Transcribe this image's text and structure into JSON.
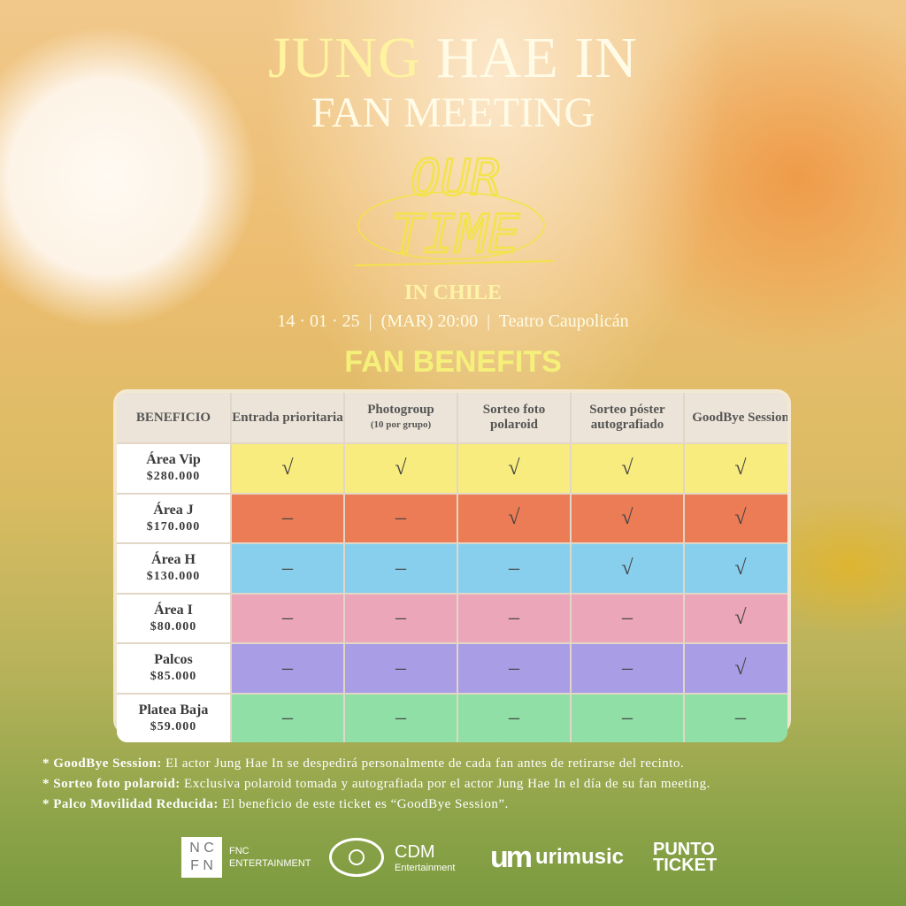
{
  "header": {
    "name_first": "JUNG",
    "name_rest": "HAE IN",
    "subtitle": "FAN MEETING",
    "logo_text": "OUR TIME",
    "location": "IN CHILE",
    "date": "14 · 01 · 25",
    "time": "(MAR) 20:00",
    "venue": "Teatro Caupolicán",
    "section_title": "FAN BENEFITS"
  },
  "table": {
    "corner": "BENEFICIO",
    "columns": [
      {
        "label": "Entrada prioritaria",
        "sub": ""
      },
      {
        "label": "Photogroup",
        "sub": "(10 por grupo)"
      },
      {
        "label": "Sorteo foto polaroid",
        "sub": ""
      },
      {
        "label": "Sorteo póster autografiado",
        "sub": ""
      },
      {
        "label": "GoodBye Session",
        "sub": ""
      }
    ],
    "rows": [
      {
        "area": "Área Vip",
        "price": "$280.000",
        "color": "#f9ec7e",
        "cells": [
          "√",
          "√",
          "√",
          "√",
          "√"
        ]
      },
      {
        "area": "Área J",
        "price": "$170.000",
        "color": "#ec7c55",
        "cells": [
          "–",
          "–",
          "√",
          "√",
          "√"
        ]
      },
      {
        "area": "Área H",
        "price": "$130.000",
        "color": "#88cfee",
        "cells": [
          "–",
          "–",
          "–",
          "√",
          "√"
        ]
      },
      {
        "area": "Área I",
        "price": "$80.000",
        "color": "#eba6ba",
        "cells": [
          "–",
          "–",
          "–",
          "–",
          "√"
        ]
      },
      {
        "area": "Palcos",
        "price": "$85.000",
        "color": "#a99de6",
        "cells": [
          "–",
          "–",
          "–",
          "–",
          "√"
        ]
      },
      {
        "area": "Platea Baja",
        "price": "$59.000",
        "color": "#90dfa6",
        "cells": [
          "–",
          "–",
          "–",
          "–",
          "–"
        ]
      }
    ]
  },
  "notes": [
    {
      "term": "* GoodBye Session:",
      "text": " El actor Jung Hae In se despedirá personalmente de cada fan antes de retirarse del recinto."
    },
    {
      "term": "* Sorteo foto polaroid:",
      "text": " Exclusiva polaroid tomada y autografiada por el actor Jung Hae In el día de su fan meeting."
    },
    {
      "term": "* Palco Movilidad Reducida:",
      "text": " El beneficio de este ticket es “GoodBye Session”."
    }
  ],
  "sponsors": {
    "fnc_line1": "FNC",
    "fnc_line2": "ENTERTAINMENT",
    "cdm_line1": "CDM",
    "cdm_line2": "Entertainment",
    "urimusic": "urimusic",
    "punto_line1": "PUNTO",
    "punto_line2": "TICKET"
  }
}
